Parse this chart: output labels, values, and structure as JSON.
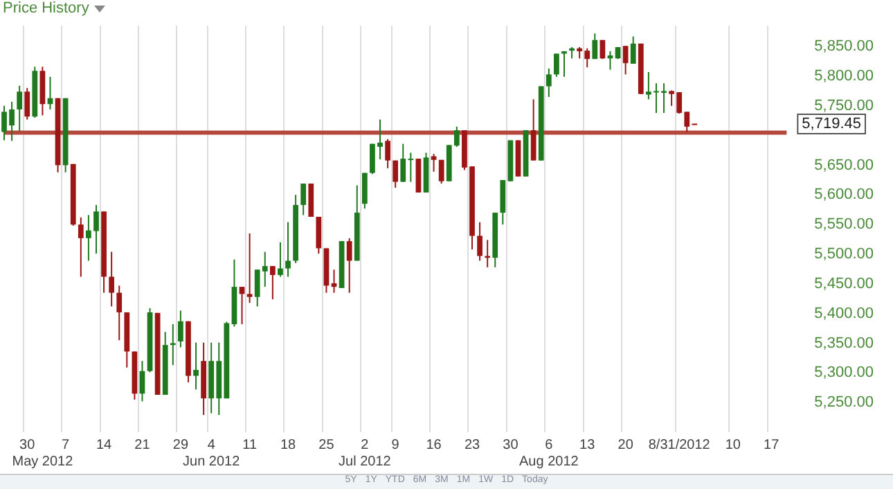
{
  "chart_data": {
    "type": "candlestick",
    "title": "Price History",
    "categories": [
      null,
      null,
      null,
      "30",
      null,
      "\nMay 2012",
      null,
      null,
      "7",
      null,
      null,
      null,
      null,
      "14",
      null,
      null,
      null,
      null,
      "21",
      null,
      null,
      null,
      null,
      "29",
      null,
      null,
      null,
      "4\nJun 2012",
      null,
      null,
      null,
      null,
      "11",
      null,
      null,
      null,
      null,
      "18",
      null,
      null,
      null,
      null,
      "25",
      null,
      null,
      null,
      null,
      "2\nJul 2012",
      null,
      null,
      null,
      "9",
      null,
      null,
      null,
      null,
      "16",
      null,
      null,
      null,
      null,
      "23",
      null,
      null,
      null,
      null,
      "30",
      null,
      null,
      null,
      null,
      "6\nAug 2012",
      null,
      null,
      null,
      null,
      "13",
      null,
      null,
      null,
      null,
      "20",
      null,
      null,
      null,
      null,
      null,
      null,
      "8/31/2012",
      null,
      null,
      null,
      null,
      null,
      null,
      "10",
      null,
      null,
      null,
      null,
      "17",
      null,
      null
    ],
    "ohlc": [
      [
        5706,
        5750,
        5692,
        5740
      ],
      [
        5717,
        5757,
        5691,
        5744
      ],
      [
        5744,
        5784,
        5707,
        5774
      ],
      [
        5774,
        5780,
        5727,
        5732
      ],
      [
        5732,
        5816,
        5730,
        5809
      ],
      [
        5809,
        5816,
        5734,
        5753
      ],
      [
        5753,
        5799,
        5744,
        5763
      ],
      [
        5763,
        5763,
        5638,
        5650
      ],
      [
        5650,
        5763,
        5638,
        5763
      ],
      [
        5652,
        5652,
        5548,
        5550
      ],
      [
        5550,
        5562,
        5462,
        5527
      ],
      [
        5527,
        5566,
        5489,
        5540
      ],
      [
        5539,
        5583,
        5501,
        5572
      ],
      [
        5572,
        5572,
        5435,
        5462
      ],
      [
        5462,
        5504,
        5412,
        5435
      ],
      [
        5435,
        5447,
        5355,
        5402
      ],
      [
        5402,
        5402,
        5309,
        5336
      ],
      [
        5336,
        5336,
        5255,
        5265
      ],
      [
        5265,
        5320,
        5252,
        5303
      ],
      [
        5303,
        5409,
        5301,
        5402
      ],
      [
        5401,
        5401,
        5263,
        5263
      ],
      [
        5263,
        5369,
        5263,
        5347
      ],
      [
        5347,
        5382,
        5313,
        5350
      ],
      [
        5353,
        5405,
        5343,
        5387
      ],
      [
        5387,
        5387,
        5284,
        5295
      ],
      [
        5295,
        5351,
        5272,
        5305
      ],
      [
        5320,
        5351,
        5229,
        5257
      ],
      [
        5257,
        5351,
        5232,
        5320
      ],
      [
        5257,
        5351,
        5229,
        5320
      ],
      [
        5257,
        5386,
        5257,
        5384
      ],
      [
        5382,
        5491,
        5378,
        5445
      ],
      [
        5445,
        5445,
        5382,
        5433
      ],
      [
        5433,
        5535,
        5418,
        5428
      ],
      [
        5428,
        5474,
        5412,
        5474
      ],
      [
        5471,
        5504,
        5445,
        5480
      ],
      [
        5480,
        5480,
        5424,
        5465
      ],
      [
        5465,
        5520,
        5462,
        5476
      ],
      [
        5476,
        5554,
        5462,
        5489
      ],
      [
        5489,
        5600,
        5485,
        5583
      ],
      [
        5583,
        5619,
        5566,
        5619
      ],
      [
        5619,
        5619,
        5563,
        5563
      ],
      [
        5563,
        5563,
        5501,
        5510
      ],
      [
        5510,
        5510,
        5435,
        5447
      ],
      [
        5451,
        5474,
        5435,
        5445
      ],
      [
        5443,
        5522,
        5443,
        5522
      ],
      [
        5522,
        5527,
        5435,
        5489
      ],
      [
        5489,
        5616,
        5489,
        5570
      ],
      [
        5585,
        5637,
        5577,
        5637
      ],
      [
        5637,
        5686,
        5635,
        5686
      ],
      [
        5681,
        5727,
        5660,
        5688
      ],
      [
        5691,
        5694,
        5645,
        5658
      ],
      [
        5658,
        5658,
        5612,
        5622
      ],
      [
        5622,
        5686,
        5622,
        5661
      ],
      [
        5659,
        5671,
        5622,
        5661
      ],
      [
        5661,
        5661,
        5604,
        5604
      ],
      [
        5604,
        5671,
        5604,
        5663
      ],
      [
        5665,
        5669,
        5639,
        5659
      ],
      [
        5659,
        5659,
        5619,
        5623
      ],
      [
        5623,
        5684,
        5623,
        5684
      ],
      [
        5683,
        5715,
        5681,
        5709
      ],
      [
        5709,
        5709,
        5642,
        5646
      ],
      [
        5648,
        5648,
        5508,
        5531
      ],
      [
        5531,
        5554,
        5489,
        5497
      ],
      [
        5497,
        5524,
        5478,
        5494
      ],
      [
        5494,
        5570,
        5478,
        5570
      ],
      [
        5570,
        5625,
        5550,
        5625
      ],
      [
        5623,
        5692,
        5623,
        5692
      ],
      [
        5692,
        5692,
        5631,
        5631
      ],
      [
        5631,
        5709,
        5631,
        5709
      ],
      [
        5709,
        5761,
        5658,
        5658
      ],
      [
        5658,
        5783,
        5658,
        5783
      ],
      [
        5783,
        5813,
        5765,
        5803
      ],
      [
        5803,
        5838,
        5799,
        5838
      ],
      [
        5838,
        5842,
        5799,
        5842
      ],
      [
        5843,
        5849,
        5830,
        5847
      ],
      [
        5847,
        5849,
        5830,
        5842
      ],
      [
        5843,
        5847,
        5815,
        5829
      ],
      [
        5829,
        5872,
        5829,
        5861
      ],
      [
        5861,
        5861,
        5829,
        5830
      ],
      [
        5830,
        5842,
        5811,
        5835
      ],
      [
        5830,
        5849,
        5829,
        5849
      ],
      [
        5851,
        5851,
        5803,
        5822
      ],
      [
        5821,
        5867,
        5821,
        5855
      ],
      [
        5855,
        5855,
        5770,
        5770
      ],
      [
        5769,
        5807,
        5761,
        5774
      ],
      [
        5773,
        5788,
        5738,
        5775
      ],
      [
        5772,
        5788,
        5738,
        5775
      ],
      [
        5775,
        5776,
        5750,
        5770
      ],
      [
        5773,
        5773,
        5737,
        5738
      ],
      [
        5740,
        5740,
        5706,
        5715
      ],
      [
        5720,
        5720,
        5719,
        5719.45
      ],
      null,
      null,
      null,
      null,
      null,
      null,
      null,
      null,
      null,
      null,
      null,
      null
    ],
    "colors": [
      "#1f7a1f",
      "#1f7a1f",
      "#1f7a1f",
      "#9e1515",
      "#1f7a1f",
      "#9e1515",
      "#1f7a1f",
      "#9e1515",
      "#1f7a1f",
      "#9e1515",
      "#9e1515",
      "#1f7a1f",
      "#1f7a1f",
      "#9e1515",
      "#9e1515",
      "#9e1515",
      "#9e1515",
      "#9e1515",
      "#1f7a1f",
      "#1f7a1f",
      "#9e1515",
      "#1f7a1f",
      "#1f7a1f",
      "#1f7a1f",
      "#9e1515",
      "#1f7a1f",
      "#9e1515",
      "#1f7a1f",
      "#1f7a1f",
      "#1f7a1f",
      "#1f7a1f",
      "#9e1515",
      "#9e1515",
      "#1f7a1f",
      "#1f7a1f",
      "#9e1515",
      "#1f7a1f",
      "#1f7a1f",
      "#1f7a1f",
      "#1f7a1f",
      "#9e1515",
      "#9e1515",
      "#9e1515",
      "#9e1515",
      "#1f7a1f",
      "#9e1515",
      "#1f7a1f",
      "#1f7a1f",
      "#1f7a1f",
      "#1f7a1f",
      "#9e1515",
      "#9e1515",
      "#1f7a1f",
      "#1f7a1f",
      "#9e1515",
      "#1f7a1f",
      "#9e1515",
      "#9e1515",
      "#1f7a1f",
      "#1f7a1f",
      "#9e1515",
      "#9e1515",
      "#9e1515",
      "#9e1515",
      "#1f7a1f",
      "#1f7a1f",
      "#1f7a1f",
      "#9e1515",
      "#1f7a1f",
      "#9e1515",
      "#1f7a1f",
      "#1f7a1f",
      "#1f7a1f",
      "#1f7a1f",
      "#1f7a1f",
      "#9e1515",
      "#9e1515",
      "#1f7a1f",
      "#9e1515",
      "#1f7a1f",
      "#1f7a1f",
      "#9e1515",
      "#1f7a1f",
      "#9e1515",
      "#1f7a1f",
      "#1f7a1f",
      "#1f7a1f",
      "#9e1515",
      "#9e1515",
      "#9e1515",
      "#9e1515",
      null,
      null,
      null,
      null,
      null,
      null,
      null,
      null,
      null,
      null,
      null,
      null
    ],
    "ylim": [
      5200,
      5885
    ],
    "yticks": [
      {
        "value": 5250,
        "label": "5,250.00"
      },
      {
        "value": 5300,
        "label": "5,300.00"
      },
      {
        "value": 5350,
        "label": "5,350.00"
      },
      {
        "value": 5400,
        "label": "5,400.00"
      },
      {
        "value": 5450,
        "label": "5,450.00"
      },
      {
        "value": 5500,
        "label": "5,500.00"
      },
      {
        "value": 5550,
        "label": "5,550.00"
      },
      {
        "value": 5600,
        "label": "5,600.00"
      },
      {
        "value": 5650,
        "label": "5,650.00"
      },
      {
        "value": 5750,
        "label": "5,750.00"
      },
      {
        "value": 5800,
        "label": "5,800.00"
      },
      {
        "value": 5850,
        "label": "5,850.00"
      }
    ],
    "grid": "x",
    "ref_lines": [
      {
        "axis": "y",
        "value": 5705,
        "color": "#b5483c"
      }
    ],
    "annotations": [
      "5,719.45",
      "5Y",
      "1Y",
      "YTD",
      "6M",
      "3M",
      "1M",
      "1W",
      "1D",
      "Today"
    ]
  }
}
